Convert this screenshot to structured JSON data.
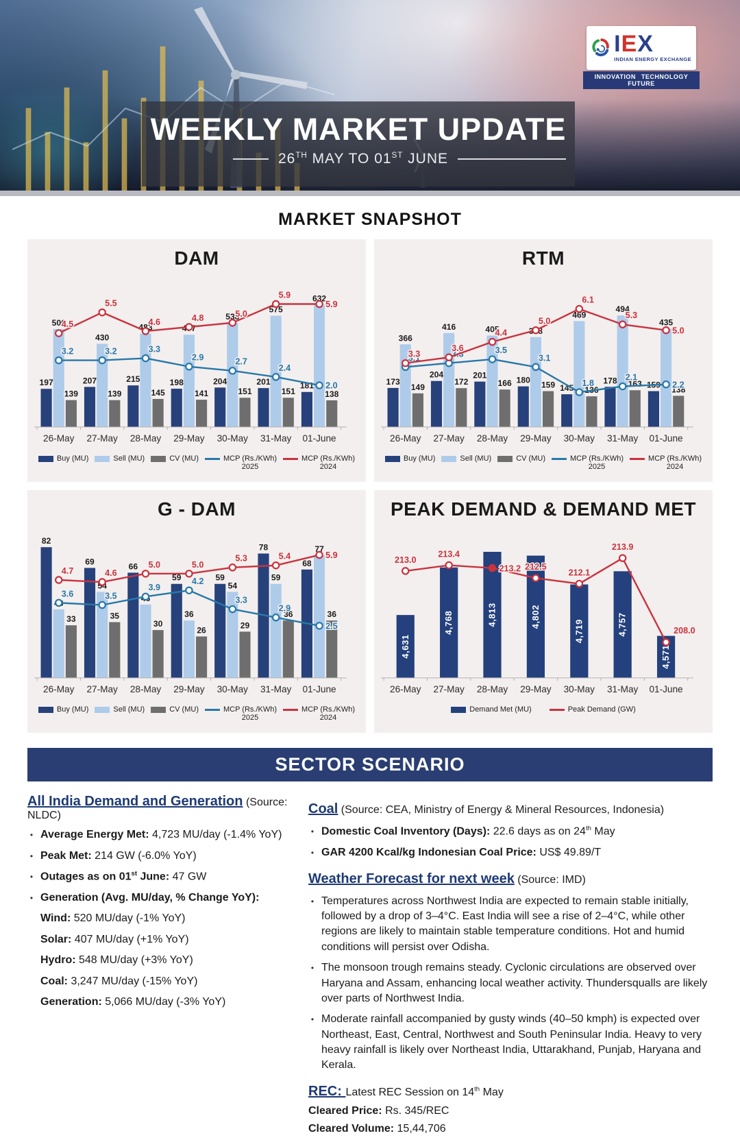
{
  "header": {
    "title": "WEEKLY MARKET UPDATE",
    "subtitle_parts": [
      {
        "t": "26"
      },
      {
        "t": "TH",
        "sup": 1
      },
      {
        "t": " MAY TO 01"
      },
      {
        "t": "ST",
        "sup": 1
      },
      {
        "t": " JUNE"
      }
    ],
    "logo": {
      "name_parts": [
        {
          "t": "I"
        },
        {
          "t": "E",
          "cls": "iex-red"
        },
        {
          "t": "X"
        }
      ],
      "subtitle": "INDIAN ENERGY EXCHANGE",
      "tagline": "INNOVATION TECHNOLOGY FUTURE"
    }
  },
  "section_title": "MARKET SNAPSHOT",
  "colors": {
    "buy": "#27417b",
    "sell": "#aecbea",
    "cv": "#6e6e6e",
    "mcp_2025": "#2878a8",
    "mcp_2024": "#c9333e",
    "demand_met": "#24407d",
    "peak_demand": "#c9333e",
    "panel_bg": "#f3efee",
    "sector_navy": "#2a3e73"
  },
  "chart_data": [
    {
      "type": "bar",
      "title": "DAM",
      "categories": [
        "26-May",
        "27-May",
        "28-May",
        "29-May",
        "30-May",
        "31-May",
        "01-June"
      ],
      "bar_series": [
        {
          "name": "Buy (MU)",
          "color": "#27417b",
          "values": [
            197,
            207,
            215,
            198,
            204,
            201,
            181
          ]
        },
        {
          "name": "Sell (MU)",
          "color": "#aecbea",
          "values": [
            506,
            430,
            483,
            477,
            538,
            575,
            632
          ]
        },
        {
          "name": "CV (MU)",
          "color": "#6e6e6e",
          "values": [
            139,
            139,
            145,
            141,
            151,
            151,
            138
          ]
        }
      ],
      "line_series": [
        {
          "name": "MCP (Rs./KWh)",
          "year": "2025",
          "color": "#2878a8",
          "values": [
            3.2,
            3.2,
            3.3,
            2.9,
            2.7,
            2.4,
            2.0
          ]
        },
        {
          "name": "MCP (Rs./KWh)",
          "year": "2024",
          "color": "#c9333e",
          "values": [
            4.5,
            5.5,
            4.6,
            4.8,
            5.0,
            5.9,
            5.9
          ]
        }
      ],
      "ylim": [
        0,
        700
      ],
      "y2lim": [
        0,
        6.5
      ],
      "legend_position": "bottom",
      "grid": false
    },
    {
      "type": "bar",
      "title": "RTM",
      "categories": [
        "26-May",
        "27-May",
        "28-May",
        "29-May",
        "30-May",
        "31-May",
        "01-June"
      ],
      "bar_series": [
        {
          "name": "Buy (MU)",
          "color": "#27417b",
          "values": [
            173,
            204,
            201,
            180,
            145,
            178,
            159
          ]
        },
        {
          "name": "Sell (MU)",
          "color": "#aecbea",
          "values": [
            366,
            416,
            405,
            398,
            469,
            494,
            435
          ]
        },
        {
          "name": "CV (MU)",
          "color": "#6e6e6e",
          "values": [
            149,
            172,
            166,
            159,
            136,
            163,
            138
          ]
        }
      ],
      "line_series": [
        {
          "name": "MCP (Rs./KWh)",
          "year": "2025",
          "color": "#2878a8",
          "values": [
            3.1,
            3.3,
            3.5,
            3.1,
            1.8,
            2.1,
            2.2
          ]
        },
        {
          "name": "MCP (Rs./KWh)",
          "year": "2024",
          "color": "#c9333e",
          "values": [
            3.3,
            3.6,
            4.4,
            5.0,
            6.1,
            5.3,
            5.0
          ]
        }
      ],
      "ylim": [
        0,
        600
      ],
      "y2lim": [
        0,
        7
      ],
      "legend_position": "bottom",
      "grid": false
    },
    {
      "type": "bar",
      "title": "G - DAM",
      "categories": [
        "26-May",
        "27-May",
        "28-May",
        "29-May",
        "30-May",
        "31-May",
        "01-June"
      ],
      "bar_series": [
        {
          "name": "Buy (MU)",
          "color": "#27417b",
          "values": [
            82,
            69,
            66,
            59,
            59,
            78,
            68
          ]
        },
        {
          "name": "Sell (MU)",
          "color": "#aecbea",
          "values": [
            43,
            54,
            46,
            36,
            54,
            59,
            77
          ]
        },
        {
          "name": "CV (MU)",
          "color": "#6e6e6e",
          "values": [
            33,
            35,
            30,
            26,
            29,
            36,
            36
          ]
        }
      ],
      "line_series": [
        {
          "name": "MCP (Rs./KWh)",
          "year": "2025",
          "color": "#2878a8",
          "values": [
            3.6,
            3.5,
            3.9,
            4.2,
            3.3,
            2.9,
            2.5
          ]
        },
        {
          "name": "MCP (Rs./KWh)",
          "year": "2024",
          "color": "#c9333e",
          "values": [
            4.7,
            4.6,
            5.0,
            5.0,
            5.3,
            5.4,
            5.9
          ]
        }
      ],
      "ylim": [
        0,
        85
      ],
      "y2lim": [
        0,
        6.5
      ],
      "legend_position": "bottom",
      "grid": false
    },
    {
      "type": "bar",
      "title": "PEAK DEMAND & DEMAND MET",
      "categories": [
        "26-May",
        "27-May",
        "28-May",
        "29-May",
        "30-May",
        "31-May",
        "01-June"
      ],
      "bar_series": [
        {
          "name": "Demand Met (MU)",
          "color": "#24407d",
          "label_style": "inside-vertical",
          "values": [
            4631,
            4768,
            4813,
            4802,
            4719,
            4757,
            4571
          ],
          "labels": [
            "4,631",
            "4,768",
            "4,813",
            "4,802",
            "4,719",
            "4,757",
            "4,571"
          ]
        }
      ],
      "line_series": [
        {
          "name": "Peak Demand (GW)",
          "color": "#c9333e",
          "marker_filled_index": 2,
          "values": [
            213.0,
            213.4,
            213.2,
            212.5,
            212.1,
            213.9,
            208.0
          ],
          "labels": [
            "213.0",
            "213.4",
            "213.2",
            "212.5",
            "212.1",
            "213.9",
            "208.0"
          ]
        }
      ],
      "ylim": [
        4450,
        4840
      ],
      "y2lim": [
        205.5,
        215
      ],
      "line_label_mode": "peak",
      "legend_position": "bottom",
      "grid": false
    }
  ],
  "sector": {
    "banner": "SECTOR SCENARIO",
    "left": {
      "heading": [
        {
          "t": "All India Demand and Generation",
          "cls": "h-navy"
        },
        {
          "t": " (Source: NLDC)",
          "cls": "src"
        }
      ],
      "items": [
        {
          "bullet": 1,
          "segs": [
            {
              "t": "Average Energy Met: ",
              "b": 1
            },
            {
              "t": "4,723 MU/day (-1.4% YoY)"
            }
          ]
        },
        {
          "bullet": 1,
          "segs": [
            {
              "t": "Peak Met: ",
              "b": 1
            },
            {
              "t": "214 GW (-6.0% YoY)"
            }
          ]
        },
        {
          "bullet": 1,
          "segs": [
            {
              "t": "Outages as on 01",
              "b": 1
            },
            {
              "t": "st",
              "b": 1,
              "sup": 1
            },
            {
              "t": " June: ",
              "b": 1
            },
            {
              "t": "47 GW"
            }
          ]
        },
        {
          "bullet": 1,
          "segs": [
            {
              "t": "Generation  (Avg. MU/day, % Change YoY):",
              "b": 1
            }
          ]
        },
        {
          "indent": 1,
          "segs": [
            {
              "t": "Wind: ",
              "b": 1
            },
            {
              "t": "520 MU/day (-1% YoY)"
            }
          ]
        },
        {
          "indent": 1,
          "segs": [
            {
              "t": "Solar: ",
              "b": 1
            },
            {
              "t": "407 MU/day (+1% YoY)"
            }
          ]
        },
        {
          "indent": 1,
          "segs": [
            {
              "t": "Hydro: ",
              "b": 1
            },
            {
              "t": "548 MU/day (+3% YoY)"
            }
          ]
        },
        {
          "indent": 1,
          "segs": [
            {
              "t": "Coal: ",
              "b": 1
            },
            {
              "t": "3,247 MU/day (-15% YoY)"
            }
          ]
        },
        {
          "indent": 1,
          "segs": [
            {
              "t": "Generation: ",
              "b": 1
            },
            {
              "t": "5,066 MU/day (-3% YoY)"
            }
          ]
        }
      ]
    },
    "right": {
      "items": [
        {
          "heading": 1,
          "segs": [
            {
              "t": "Coal",
              "cls": "h-navy"
            },
            {
              "t": " (Source: CEA, Ministry of Energy & Mineral Resources, Indonesia)",
              "cls": "src"
            }
          ]
        },
        {
          "bullet": 1,
          "segs": [
            {
              "t": "Domestic Coal Inventory (Days): ",
              "b": 1
            },
            {
              "t": "22.6 days as on 24"
            },
            {
              "t": "th",
              "sup": 1
            },
            {
              "t": " May"
            }
          ]
        },
        {
          "bullet": 1,
          "segs": [
            {
              "t": "GAR 4200 Kcal/kg Indonesian Coal Price: ",
              "b": 1
            },
            {
              "t": "US$ 49.89/T"
            }
          ]
        },
        {
          "heading": 1,
          "segs": [
            {
              "t": "Weather Forecast for next week",
              "cls": "h-navy"
            },
            {
              "t": " (Source: IMD)",
              "cls": "src"
            }
          ]
        },
        {
          "bullet": 1,
          "segs": [
            {
              "t": "Temperatures across Northwest India are expected to remain stable initially, followed by a drop of 3–4°C. East India will see a rise of 2–4°C, while other regions are likely to maintain stable temperature conditions. Hot and humid conditions will persist over Odisha."
            }
          ]
        },
        {
          "bullet": 1,
          "segs": [
            {
              "t": "The monsoon trough remains steady. Cyclonic circulations are observed over Haryana and Assam, enhancing local weather activity. Thundersqualls are likely over parts of Northwest India."
            }
          ]
        },
        {
          "bullet": 1,
          "segs": [
            {
              "t": "Moderate rainfall accompanied by gusty winds (40–50 kmph) is expected over Northeast, East, Central, Northwest and South Peninsular India. Heavy to very heavy rainfall is likely over Northeast India, Uttarakhand, Punjab, Haryana and Kerala."
            }
          ]
        },
        {
          "heading": 1,
          "segs": [
            {
              "t": "REC: ",
              "cls": "h-navy"
            },
            {
              "t": "Latest REC Session on 14"
            },
            {
              "t": "th",
              "sup": 1
            },
            {
              "t": " May"
            }
          ]
        },
        {
          "plain": 1,
          "segs": [
            {
              "t": "Cleared Price: ",
              "b": 1
            },
            {
              "t": "Rs. 345/REC"
            }
          ]
        },
        {
          "plain": 1,
          "segs": [
            {
              "t": "Cleared Volume: ",
              "b": 1
            },
            {
              "t": "15,44,706"
            }
          ]
        }
      ]
    }
  }
}
